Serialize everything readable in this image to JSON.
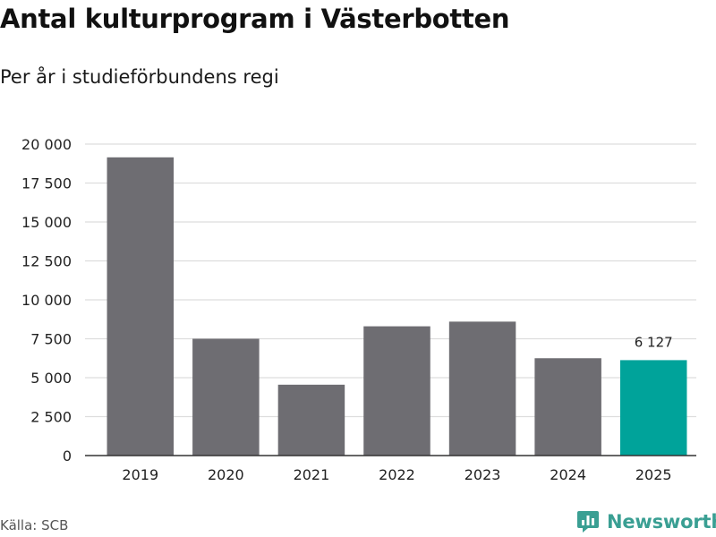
{
  "title": "Antal kulturprogram i Västerbotten",
  "subtitle": "Per år i studieförbundens regi",
  "source": "Källa: SCB",
  "brand": "Newsworthy",
  "colors": {
    "bar": "#6e6d72",
    "highlight": "#00a39a",
    "grid": "#dddddd",
    "axis": "#333333",
    "brand": "#3a9f93"
  },
  "chart_data": {
    "type": "bar",
    "title": "Antal kulturprogram i Västerbotten",
    "subtitle": "Per år i studieförbundens regi",
    "categories": [
      "2019",
      "2020",
      "2021",
      "2022",
      "2023",
      "2024",
      "2025"
    ],
    "values": [
      19150,
      7500,
      4550,
      8300,
      8600,
      6250,
      6127
    ],
    "highlight_index": 6,
    "data_labels": [
      {
        "index": 6,
        "text": "6 127"
      }
    ],
    "ylim": [
      0,
      20000
    ],
    "yticks": [
      0,
      2500,
      5000,
      7500,
      10000,
      12500,
      15000,
      17500,
      20000
    ],
    "ytick_labels": [
      "0",
      "2 500",
      "5 000",
      "7 500",
      "10 000",
      "12 500",
      "15 000",
      "17 500",
      "20 000"
    ],
    "xlabel": "",
    "ylabel": "",
    "grid": true
  }
}
